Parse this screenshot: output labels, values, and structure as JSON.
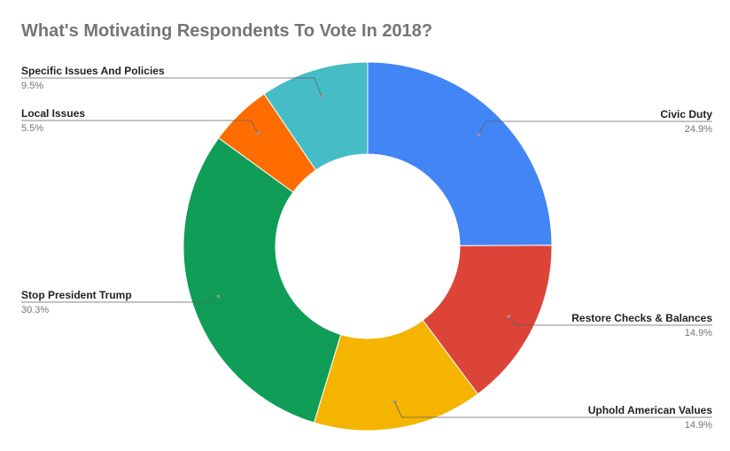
{
  "chart_data": {
    "type": "pie",
    "donut": true,
    "title": "What's Motivating Respondents To Vote In 2018?",
    "slices": [
      {
        "label": "Civic Duty",
        "value": 24.9,
        "value_label": "24.9%",
        "color": "#4285F4"
      },
      {
        "label": "Restore Checks & Balances",
        "value": 14.9,
        "value_label": "14.9%",
        "color": "#DB4437"
      },
      {
        "label": "Uphold American Values",
        "value": 14.9,
        "value_label": "14.9%",
        "color": "#F4B400"
      },
      {
        "label": "Stop President Trump",
        "value": 30.3,
        "value_label": "30.3%",
        "color": "#0F9D58"
      },
      {
        "label": "Local Issues",
        "value": 5.5,
        "value_label": "5.5%",
        "color": "#FF6D00"
      },
      {
        "label": "Specific Issues And Policies",
        "value": 9.5,
        "value_label": "9.5%",
        "color": "#46BDC6"
      }
    ],
    "legend": "none"
  }
}
